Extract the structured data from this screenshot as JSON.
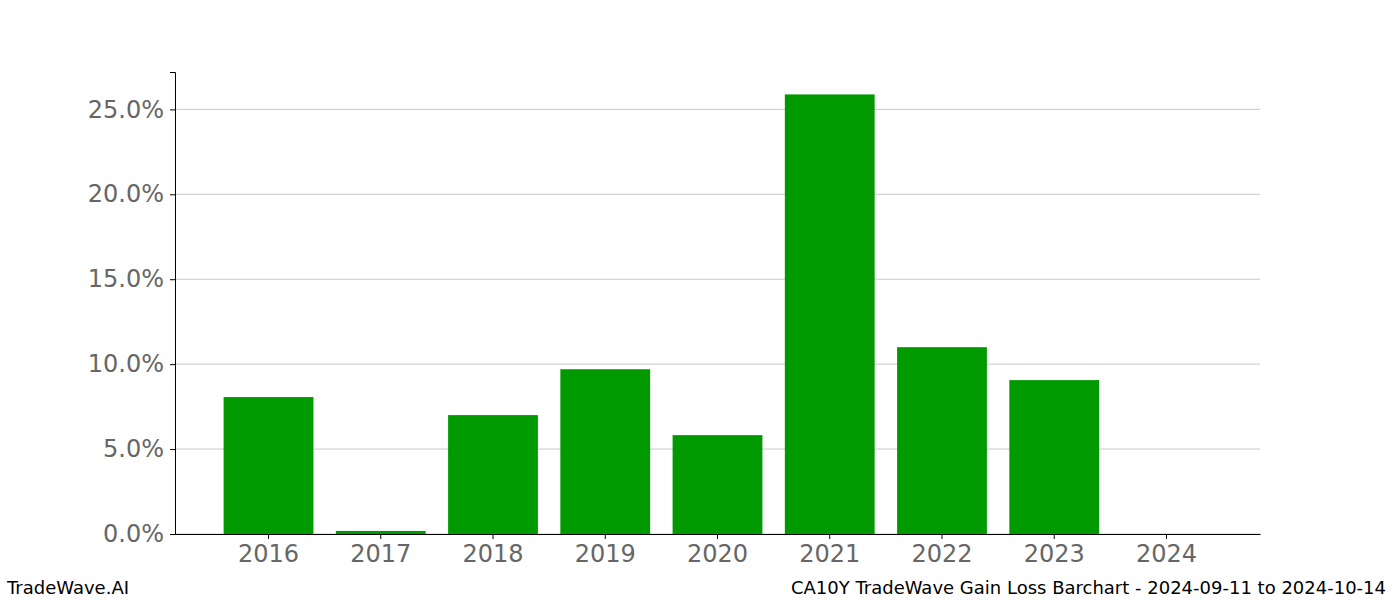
{
  "chart_data": {
    "type": "bar",
    "title": "CA10Y TradeWave Gain Loss Barchart - 2024-09-11 to 2024-10-14",
    "annotations": [
      "TradeWave.AI"
    ],
    "categories": [
      "2016",
      "2017",
      "2018",
      "2019",
      "2020",
      "2021",
      "2022",
      "2023",
      "2024"
    ],
    "values": [
      8.06,
      0.18,
      7.0,
      9.7,
      5.82,
      25.88,
      11.0,
      9.06,
      0
    ],
    "color": "#009900",
    "ylim": [
      0,
      27.2
    ],
    "yticks": [
      {
        "value": 0,
        "label": "0.0%"
      },
      {
        "value": 5,
        "label": "5.0%"
      },
      {
        "value": 10,
        "label": "10.0%"
      },
      {
        "value": 15,
        "label": "15.0%"
      },
      {
        "value": 20,
        "label": "20.0%"
      },
      {
        "value": 25,
        "label": "25.0%"
      }
    ],
    "grid": true
  }
}
